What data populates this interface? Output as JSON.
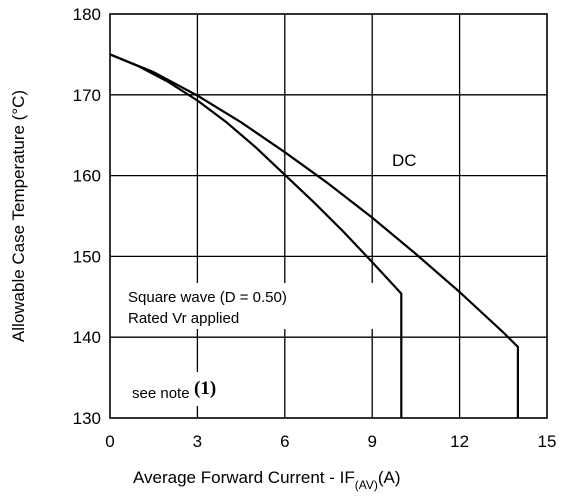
{
  "chart_data": {
    "type": "line",
    "xlabel": "Average Forward Current - IF",
    "xlabel_subscript": "(AV)",
    "xlabel_unit": "(A)",
    "ylabel": "Allowable Case Temperature (°C)",
    "xlim": [
      0,
      15
    ],
    "ylim": [
      130,
      180
    ],
    "xticks": [
      0,
      3,
      6,
      9,
      12,
      15
    ],
    "yticks": [
      130,
      140,
      150,
      160,
      170,
      180
    ],
    "grid": true,
    "series": [
      {
        "name": "DC",
        "x": [
          0,
          1.5,
          3,
          4.5,
          6,
          7.5,
          9,
          10.5,
          12,
          13.5,
          14,
          14
        ],
        "y": [
          175,
          172.8,
          169.9,
          166.6,
          162.9,
          159,
          154.8,
          150.3,
          145.6,
          140.6,
          138.8,
          130
        ]
      },
      {
        "name": "Square wave (D = 0.50)",
        "x": [
          0,
          1,
          2,
          3,
          4,
          5,
          6,
          7,
          8,
          9,
          10,
          10
        ],
        "y": [
          175,
          173.5,
          171.6,
          169.3,
          166.6,
          163.5,
          160.1,
          156.7,
          153.1,
          149.3,
          145.4,
          130
        ]
      }
    ],
    "annotations": {
      "dc_label": "DC",
      "square_line1": "Square wave (D = 0.50)",
      "square_line2": "Rated Vr  applied",
      "note_text": "see note",
      "note_num": "(1)"
    }
  }
}
